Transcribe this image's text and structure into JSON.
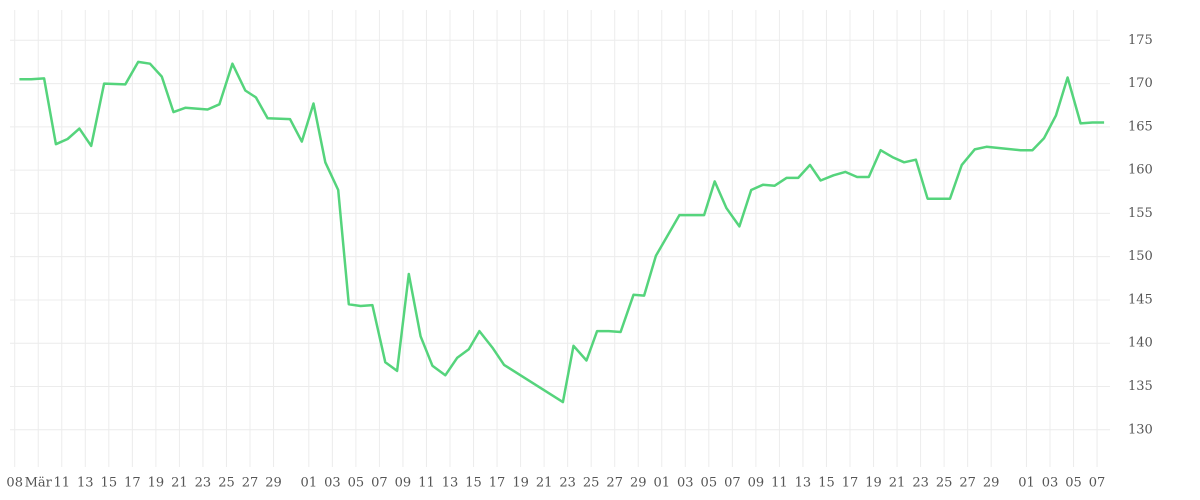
{
  "chart_data": {
    "type": "line",
    "x": [
      0.4,
      1.4,
      2.5,
      3.5,
      4.5,
      5.5,
      6.5,
      7.6,
      9.4,
      10.5,
      11.5,
      12.5,
      13.5,
      14.5,
      16.4,
      17.4,
      18.5,
      19.6,
      20.5,
      21.5,
      23.4,
      24.4,
      25.4,
      26.4,
      27.5,
      28.4,
      29.4,
      30.4,
      31.5,
      32.5,
      33.5,
      34.5,
      35.5,
      36.6,
      37.6,
      38.6,
      39.5,
      40.6,
      41.6,
      46.6,
      47.5,
      48.6,
      49.5,
      50.5,
      51.5,
      52.6,
      53.5,
      54.5,
      56.5,
      58.6,
      59.5,
      60.5,
      61.6,
      62.6,
      63.6,
      64.6,
      65.6,
      66.6,
      67.6,
      68.5,
      69.6,
      70.6,
      71.6,
      72.6,
      73.6,
      74.6,
      75.6,
      76.6,
      77.6,
      79.5,
      80.5,
      81.6,
      82.6,
      85.5,
      86.5,
      87.5,
      88.5,
      89.5,
      90.6,
      91.6,
      92.6
    ],
    "series": [
      {
        "color": "#55d47c",
        "values": [
          170.5,
          170.5,
          170.6,
          163.0,
          163.6,
          164.8,
          162.8,
          170.0,
          169.9,
          172.5,
          172.3,
          170.8,
          166.7,
          167.2,
          167.0,
          167.6,
          172.3,
          169.2,
          168.4,
          166.0,
          165.9,
          163.3,
          167.7,
          160.9,
          157.7,
          144.5,
          144.3,
          144.4,
          137.8,
          136.8,
          148.0,
          140.8,
          137.4,
          136.3,
          138.3,
          139.3,
          141.4,
          139.5,
          137.5,
          133.2,
          139.7,
          138.0,
          141.4,
          141.4,
          141.3,
          145.6,
          145.5,
          150.1,
          154.8,
          154.8,
          158.7,
          155.6,
          153.5,
          157.7,
          158.3,
          158.2,
          159.1,
          159.1,
          160.6,
          158.8,
          159.4,
          159.8,
          159.2,
          159.2,
          162.3,
          161.5,
          160.9,
          161.2,
          156.7,
          156.7,
          160.6,
          162.4,
          162.7,
          162.3,
          162.3,
          163.7,
          166.3,
          170.7,
          165.4,
          165.5,
          165.5
        ]
      }
    ],
    "xlim": [
      -0.4,
      93.1
    ],
    "xticks": [
      {
        "value": 0,
        "label": "08"
      },
      {
        "value": 2,
        "label": "Mär"
      },
      {
        "value": 4,
        "label": "11"
      },
      {
        "value": 6,
        "label": "13"
      },
      {
        "value": 8,
        "label": "15"
      },
      {
        "value": 10,
        "label": "17"
      },
      {
        "value": 12,
        "label": "19"
      },
      {
        "value": 14,
        "label": "21"
      },
      {
        "value": 16,
        "label": "23"
      },
      {
        "value": 18,
        "label": "25"
      },
      {
        "value": 20,
        "label": "27"
      },
      {
        "value": 22,
        "label": "29"
      },
      {
        "value": 25,
        "label": "01"
      },
      {
        "value": 27,
        "label": "03"
      },
      {
        "value": 29,
        "label": "05"
      },
      {
        "value": 31,
        "label": "07"
      },
      {
        "value": 33,
        "label": "09"
      },
      {
        "value": 35,
        "label": "11"
      },
      {
        "value": 37,
        "label": "13"
      },
      {
        "value": 39,
        "label": "15"
      },
      {
        "value": 41,
        "label": "17"
      },
      {
        "value": 43,
        "label": "19"
      },
      {
        "value": 45,
        "label": "21"
      },
      {
        "value": 47,
        "label": "23"
      },
      {
        "value": 49,
        "label": "25"
      },
      {
        "value": 51,
        "label": "27"
      },
      {
        "value": 53,
        "label": "29"
      },
      {
        "value": 55,
        "label": "01"
      },
      {
        "value": 57,
        "label": "03"
      },
      {
        "value": 59,
        "label": "05"
      },
      {
        "value": 61,
        "label": "07"
      },
      {
        "value": 63,
        "label": "09"
      },
      {
        "value": 65,
        "label": "11"
      },
      {
        "value": 67,
        "label": "13"
      },
      {
        "value": 69,
        "label": "15"
      },
      {
        "value": 71,
        "label": "17"
      },
      {
        "value": 73,
        "label": "19"
      },
      {
        "value": 75,
        "label": "21"
      },
      {
        "value": 77,
        "label": "23"
      },
      {
        "value": 79,
        "label": "25"
      },
      {
        "value": 81,
        "label": "27"
      },
      {
        "value": 83,
        "label": "29"
      },
      {
        "value": 86,
        "label": "01"
      },
      {
        "value": 88,
        "label": "03"
      },
      {
        "value": 90,
        "label": "05"
      },
      {
        "value": 92,
        "label": "07"
      }
    ],
    "ylim": [
      125.7,
      178.5
    ],
    "yticks": [
      130,
      135,
      140,
      145,
      150,
      155,
      160,
      165,
      170,
      175
    ],
    "grid": true
  }
}
